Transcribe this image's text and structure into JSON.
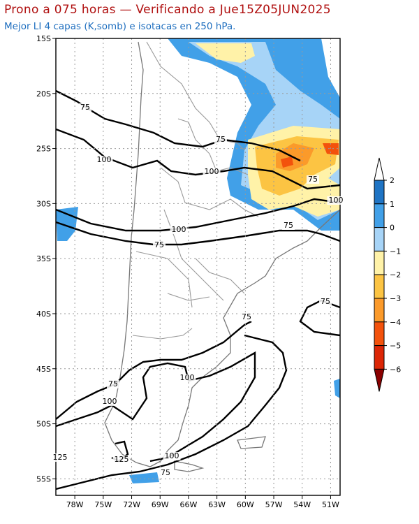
{
  "header": {
    "title": "Prono a 075 horas — Verificando a Jue15Z05JUN2025",
    "subtitle": "Mejor LI 4 capas (K,somb) e isotacas en 250 hPa."
  },
  "map": {
    "lon_range": [
      -80,
      -50
    ],
    "lat_range": [
      -56.5,
      -15
    ],
    "lat_ticks": [
      "15S",
      "20S",
      "25S",
      "30S",
      "35S",
      "40S",
      "45S",
      "50S",
      "55S"
    ],
    "lon_ticks": [
      "78W",
      "75W",
      "72W",
      "69W",
      "66W",
      "63W",
      "60W",
      "57W",
      "54W",
      "51W"
    ],
    "grid": true,
    "colors": {
      "land_border": "#888888",
      "isotach_line": "#000000"
    }
  },
  "isotach_labels": [
    "75",
    "75",
    "75",
    "100",
    "100",
    "100",
    "100",
    "75",
    "75",
    "75",
    "75",
    "75",
    "100",
    "100",
    "125",
    "125",
    "100",
    "75"
  ],
  "colorbar": {
    "labels": [
      "2",
      "1",
      "0",
      "−1",
      "−2",
      "−3",
      "−4",
      "−5",
      "−6"
    ],
    "colors": [
      "#1f74c4",
      "#41a0e8",
      "#a7d4f7",
      "#fff2a8",
      "#fcc443",
      "#fb9a2a",
      "#f3520c",
      "#dc2606",
      "#b8110a",
      "#8b0000"
    ]
  }
}
